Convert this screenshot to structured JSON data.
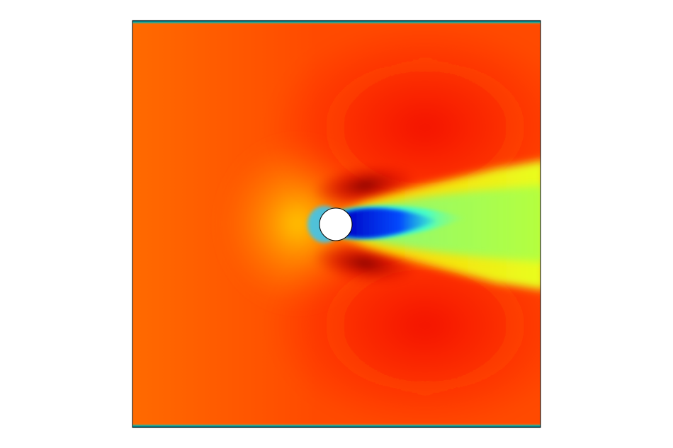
{
  "figure": {
    "kind": "flow-field-contour",
    "colormap": "jet",
    "colors": {
      "background": "#ffffff",
      "frame": "#000000",
      "far_field": "#ff4a00",
      "inlet_side": "#ff6a00",
      "shoulder_dark": "#9a0000",
      "wake_core": "#0018d8",
      "wake_mid": "#00c8ff",
      "wake_outer": "#b8ff30",
      "wake_edge": "#ffe400",
      "obstacle_fill": "#ffffff",
      "wall_layer": "#00a0b0"
    },
    "obstacle": {
      "shape": "circle"
    }
  }
}
